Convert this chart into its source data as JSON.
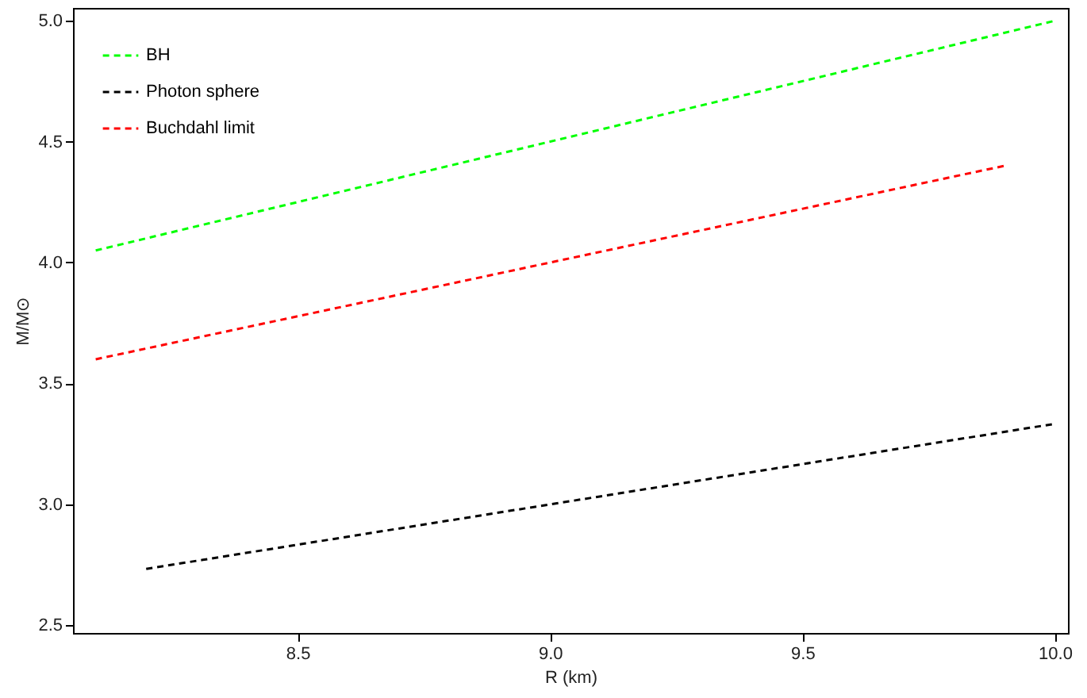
{
  "chart_data": {
    "type": "line",
    "xlabel": "R (km)",
    "ylabel": "M/M⊙",
    "series": [
      {
        "name": "BH",
        "color": "#00ff00",
        "x": [
          8.1,
          10.0
        ],
        "values": [
          4.05,
          5.0
        ]
      },
      {
        "name": "Photon sphere",
        "color": "#000000",
        "x": [
          8.2,
          10.0
        ],
        "values": [
          2.733,
          3.333
        ]
      },
      {
        "name": "Buchdahl limit",
        "color": "#ff0000",
        "x": [
          8.1,
          9.9
        ],
        "values": [
          3.6,
          4.4
        ]
      }
    ],
    "xlim": [
      8.055,
      10.026
    ],
    "xticks": [
      8.5,
      {
        "value": 9,
        "label": "9.0"
      },
      9.5,
      {
        "value": 10,
        "label": "10.0"
      }
    ],
    "ylim": [
      2.468,
      5.053
    ],
    "yticks": [
      2.5,
      {
        "value": 3,
        "label": "3.0"
      },
      3.5,
      {
        "value": 4,
        "label": "4.0"
      },
      4.5,
      {
        "value": 5,
        "label": "5.0"
      }
    ],
    "legend": "top left",
    "line_style": "dashed",
    "grid": false,
    "marker": "none"
  }
}
